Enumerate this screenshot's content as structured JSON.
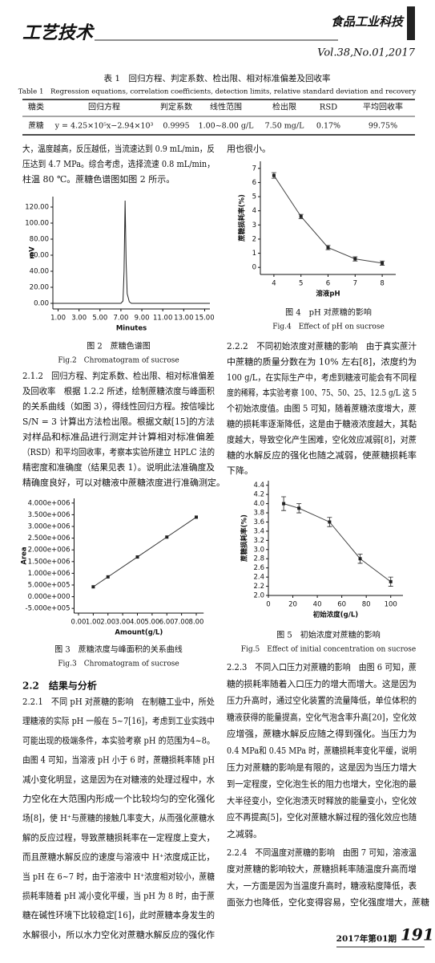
{
  "header": {
    "section": "工艺技术",
    "journal": "食品工业科技",
    "volume": "Vol.38,No.01,2017"
  },
  "table": {
    "title": "表 1　回归方程、判定系数、检出限、相对标准偏差及回收率",
    "title_en": "Table 1　Regression equations, correlation coefficients, detection limits, relative standard deviation and recovery",
    "header": [
      "糖类",
      "回归方程",
      "判定系数",
      "线性范围",
      "检出限",
      "RSD",
      "平均回收率"
    ],
    "rows": [
      [
        "蔗糖",
        "y = 4.25×10⁵x−2.94×10³",
        "0.9995",
        "1.00~8.00 g/L",
        "7.50 mg/L",
        "0.17%",
        "99.75%"
      ]
    ]
  },
  "paragraphs": [
    [
      "大，温度越高，反压越低，当流速达到 0.9 mL/min，反",
      "压达到 4.7 MPa。综合考虑，选择流速 0.8 mL/min，",
      "柱温 80 ℃。蔗糖色谱图如图 2 所示。"
    ],
    [
      "2.1.2　回归方程、判定系数、检出限、相对标准偏差",
      "及回收率　根据 1.2.2 所述，绘制蔗糖浓度与峰面积",
      "的关系曲线（如图 3），得线性回归方程。按信噪比",
      "S/N = 3 计算出方法检出限。根据文献[15]的方法",
      "对样品和标准品进行测定并计算相对标准偏差",
      "（RSD）和平均回收率，考察本实验所建立 HPLC 法的",
      "精密度和准确度（结果见表 1）。说明此法准确度及",
      "精确度良好，可以对糖液中蔗糖浓度进行准确测定。"
    ],
    [
      "2.2.1　不同 pH 对蔗糖的影响　在制糖工业中，所处",
      "理糖液的实际 pH 一般在 5~7[16]，考虑到工业实践中",
      "可能出现的极端条件，本实验考察 pH 的范围为4~8。",
      "由图 4 可知，当溶液 pH 小于 6 时，蔗糖损耗率随 pH",
      "减小变化明显，这是因为在对糖液的处理过程中，水",
      "力空化在大范围内形成一个比较均匀的空化强化",
      "场[8]，使 H⁺与蔗糖的接触几率变大，从而强化蔗糖水",
      "解的反应过程，导致蔗糖损耗率在一定程度上变大，",
      "而且蔗糖水解反应的速度与溶液中 H⁺浓度成正比，",
      "当 pH 在 6~7 时，由于溶液中 H⁺浓度相对较小，蔗糖",
      "损耗率随着 pH 减小变化平缓，当 pH 为 8 时，由于蔗",
      "糖在碱性环境下比较稳定[16]，此时蔗糖本身发生的",
      "水解很小，所以水力空化对蔗糖水解反应的强化作"
    ],
    [
      "用也很小。"
    ],
    [
      "2.2.2　不同初始浓度对蔗糖的影响　由于真实蔗汁",
      "中蔗糖的质量分数在为 10% 左右[8]，浓度约为",
      "100 g/L，在实际生产中，考虑到糖液可能会有不同程",
      "度的稀释，本实验考察 100、75、50、25、12.5 g/L 这 5",
      "个初始浓度值。由图 5 可知，随着蔗糖浓度增大，蔗",
      "糖的损耗率逐渐降低，这是由于糖液浓度越大，其黏",
      "度越大，导致空化产生困难，空化效应减弱[8]，对蔗",
      "糖的水解反应的强化也随之减弱，使蔗糖损耗率",
      "下降。"
    ],
    [
      "2.2.3　不同入口压力对蔗糖的影响　由图 6 可知，蔗",
      "糖的损耗率随着入口压力的增大而增大。这是因为",
      "压力升高时，通过空化装置的流量降低，单位体积的",
      "糖液获得的能量提高，空化气泡含率升高[20]，空化效",
      "应增强，蔗糖水解反应随之得到强化。当压力为",
      "0.4 MPa和 0.45 MPa 时，蔗糖损耗率变化平缓，说明",
      "压力对蔗糖的影响是有限的，这是因为当压力增大",
      "到一定程度，空化泡生长的阻力也增大，空化泡的最",
      "大半径变小，空化泡溃灭时释放的能量变小，空化效",
      "应不再提高[5]，空化对蔗糖水解过程的强化效应也随",
      "之减弱。"
    ],
    [
      "2.2.4　不同温度对蔗糖的影响　由图 7 可知，溶液温",
      "度对蔗糖的影响较大，蔗糖损耗率随温度升高而增",
      "大，一方面是因为当温度升高时，糖液粘度降低，表",
      "面张力也降低，空化变得容易，空化强度增大，蔗糖"
    ]
  ],
  "heading": "2.2　结果与分析",
  "footer": {
    "issue": "2017年第01期",
    "page": "191"
  },
  "chart_data": [
    {
      "type": "line",
      "xlabel": "Minutes",
      "ylabel": "mV",
      "caption": "图 2　蔗糖色谱图",
      "caption_en": "Fig.2　Chromatogram of sucrose",
      "x": [
        0.5,
        7.0,
        7.2,
        7.3,
        7.4,
        7.5,
        7.6,
        7.8,
        8.0,
        15.5
      ],
      "series": [
        {
          "color": "#222222",
          "values": [
            0,
            0,
            3,
            40,
            128,
            50,
            12,
            2,
            0,
            0
          ]
        }
      ],
      "xlim": [
        0.5,
        15.5
      ],
      "ylim": [
        -7,
        133
      ],
      "xticks": [
        {
          "value": 1,
          "label": "1.00"
        },
        {
          "value": 3,
          "label": "3.00"
        },
        {
          "value": 5,
          "label": "5.00"
        },
        {
          "value": 7,
          "label": "7.00"
        },
        {
          "value": 9,
          "label": "9.00"
        },
        {
          "value": 11,
          "label": "11.00"
        },
        {
          "value": 13,
          "label": "13.00"
        },
        {
          "value": 15,
          "label": "15.00"
        }
      ],
      "yticks": [
        {
          "value": 0,
          "label": "0.00"
        },
        {
          "value": 20,
          "label": "20.00"
        },
        {
          "value": 40,
          "label": "40.00"
        },
        {
          "value": 60,
          "label": "60.00"
        },
        {
          "value": 80,
          "label": "80.00"
        },
        {
          "value": 100,
          "label": "100.00"
        },
        {
          "value": 120,
          "label": "120.00"
        }
      ],
      "markers": false
    },
    {
      "type": "line",
      "xlabel": "Amount(g/L)",
      "ylabel": "Area",
      "caption": "图 3　蔗糖浓度与峰面积的关系曲线",
      "caption_en": "Fig.3　Chromatogram of sucrose",
      "x": [
        1,
        2,
        4,
        6,
        8
      ],
      "series": [
        {
          "color": "#333333",
          "values": [
            422000,
            847000,
            1697000,
            2547000,
            3397000
          ]
        }
      ],
      "xlim": [
        -0.3,
        8.5
      ],
      "ylim": [
        -700000,
        4200000
      ],
      "xticks": [
        {
          "value": 0,
          "label": "0.00"
        },
        {
          "value": 1,
          "label": "1.00"
        },
        {
          "value": 2,
          "label": "2.00"
        },
        {
          "value": 3,
          "label": "3.00"
        },
        {
          "value": 4,
          "label": "4.00"
        },
        {
          "value": 5,
          "label": "5.00"
        },
        {
          "value": 6,
          "label": "6.00"
        },
        {
          "value": 7,
          "label": "7.00"
        },
        {
          "value": 8,
          "label": "8.00"
        }
      ],
      "yticks": [
        {
          "value": -500000,
          "label": "-5.000e+005"
        },
        {
          "value": 0,
          "label": "0.000e+000"
        },
        {
          "value": 500000,
          "label": "5.000e+005"
        },
        {
          "value": 1000000,
          "label": "1.000e+006"
        },
        {
          "value": 1500000,
          "label": "1.500e+006"
        },
        {
          "value": 2000000,
          "label": "2.000e+006"
        },
        {
          "value": 2500000,
          "label": "2.500e+006"
        },
        {
          "value": 3000000,
          "label": "3.000e+006"
        },
        {
          "value": 3500000,
          "label": "3.500e+006"
        },
        {
          "value": 4000000,
          "label": "4.000e+006"
        }
      ],
      "markers": true
    },
    {
      "type": "line",
      "xlabel": "溶液pH",
      "ylabel": "蔗糖损耗率(%)",
      "caption": "图 4　pH 对蔗糖的影响",
      "caption_en": "Fig.4　Effect of pH on sucrose",
      "x": [
        4,
        5,
        6,
        7,
        8
      ],
      "series": [
        {
          "color": "#444444",
          "values": [
            6.5,
            3.6,
            1.4,
            0.6,
            0.3
          ],
          "errors": [
            0.2,
            0.15,
            0.15,
            0.15,
            0.15
          ]
        }
      ],
      "xlim": [
        3.5,
        8.5
      ],
      "ylim": [
        -0.5,
        7.5
      ],
      "xticks": [
        4,
        5,
        6,
        7,
        8
      ],
      "yticks": [
        0,
        1,
        2,
        3,
        4,
        5,
        6,
        7
      ],
      "markers": true
    },
    {
      "type": "line",
      "xlabel": "初始浓度(g/L)",
      "ylabel": "蔗糖损耗率(%)",
      "caption": "图 5　初始浓度对蔗糖的影响",
      "caption_en": "Fig.5　Effect of initial concentration on sucrose",
      "x": [
        12.5,
        25,
        50,
        75,
        100
      ],
      "series": [
        {
          "color": "#444444",
          "values": [
            4.0,
            3.9,
            3.6,
            2.8,
            2.3
          ],
          "errors": [
            0.15,
            0.1,
            0.1,
            0.1,
            0.1
          ]
        }
      ],
      "xlim": [
        0,
        110
      ],
      "ylim": [
        2.0,
        4.5
      ],
      "xticks": [
        0,
        20,
        40,
        60,
        80,
        100
      ],
      "yticks": [
        {
          "value": 2,
          "label": "2.0"
        },
        2.2,
        2.4,
        2.6,
        2.8,
        {
          "value": 3,
          "label": "3.0"
        },
        3.2,
        3.4,
        3.6,
        3.8,
        {
          "value": 4,
          "label": "4.0"
        },
        4.2,
        4.4
      ],
      "markers": true
    }
  ]
}
